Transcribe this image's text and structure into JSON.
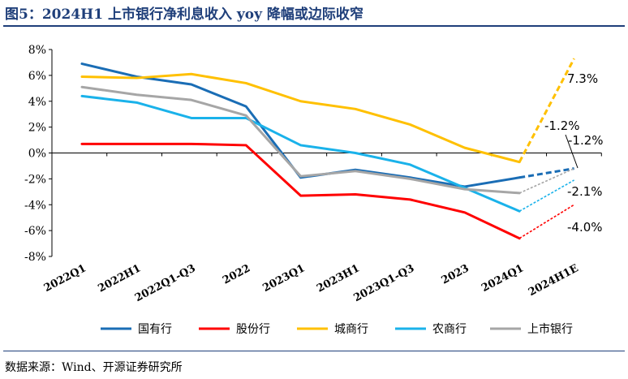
{
  "title": "图5：2024H1 上市银行净利息收入 yoy 降幅或边际收窄",
  "source": "数据来源：Wind、开源证券研究所",
  "chart_data": {
    "type": "line",
    "categories": [
      "2022Q1",
      "2022H1",
      "2022Q1-Q3",
      "2022",
      "2023Q1",
      "2023H1",
      "2023Q1-Q3",
      "2023",
      "2024Q1",
      "2024H1E"
    ],
    "y_ticks": [
      "8%",
      "6%",
      "4%",
      "2%",
      "0%",
      "-2%",
      "-4%",
      "-6%",
      "-8%"
    ],
    "ylim": [
      -8,
      8
    ],
    "legend_position": "bottom",
    "grid": false,
    "series": [
      {
        "name": "国有行",
        "color": "#1a6db5",
        "values": [
          6.9,
          5.9,
          5.3,
          3.6,
          -1.9,
          -1.3,
          -1.9,
          -2.6,
          -1.9,
          -1.2
        ],
        "forecast_label": "-1.2%"
      },
      {
        "name": "股份行",
        "color": "#ff0000",
        "values": [
          0.7,
          0.7,
          0.7,
          0.6,
          -3.3,
          -3.2,
          -3.6,
          -4.6,
          -6.6,
          -4.0
        ],
        "forecast_label": "-4.0%"
      },
      {
        "name": "城商行",
        "color": "#ffc000",
        "values": [
          5.9,
          5.8,
          6.1,
          5.4,
          4.0,
          3.4,
          2.2,
          0.4,
          -0.7,
          7.3
        ],
        "forecast_label": "7.3%"
      },
      {
        "name": "农商行",
        "color": "#1ab2ea",
        "values": [
          4.4,
          3.9,
          2.7,
          2.7,
          0.6,
          0.0,
          -0.9,
          -2.7,
          -4.5,
          -2.1
        ],
        "forecast_label": "-2.1%"
      },
      {
        "name": "上市银行",
        "color": "#a6a6a6",
        "values": [
          5.1,
          4.5,
          4.1,
          2.9,
          -1.8,
          -1.4,
          -2.0,
          -2.8,
          -3.1,
          -1.2
        ],
        "forecast_label": "-1.2%"
      }
    ]
  }
}
